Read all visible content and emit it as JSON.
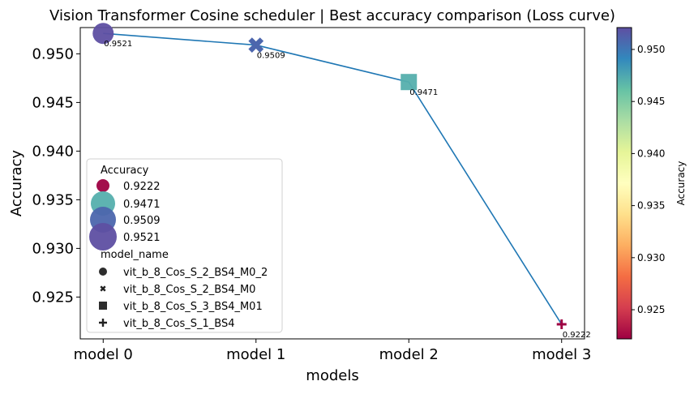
{
  "chart_data": {
    "type": "scatter",
    "title": "Vision Transformer Cosine scheduler | Best accuracy comparison (Loss curve)",
    "xlabel": "models",
    "ylabel": "Accuracy",
    "categories": [
      "model 0",
      "model 1",
      "model 2",
      "model 3"
    ],
    "values": [
      0.9521,
      0.9509,
      0.9471,
      0.9222
    ],
    "point_labels": [
      "0.9521",
      "0.9509",
      "0.9471",
      "0.9222"
    ],
    "model_names": [
      "vit_b_8_Cos_S_2_BS4_M0_2",
      "vit_b_8_Cos_S_2_BS4_M0",
      "vit_b_8_Cos_S_3_BS4_M01",
      "vit_b_8_Cos_S_1_BS4"
    ],
    "markers": [
      "circle",
      "x",
      "square",
      "plus"
    ],
    "ylim": [
      0.9207,
      0.9527
    ],
    "yticks": [
      0.925,
      0.93,
      0.935,
      0.94,
      0.945,
      0.95
    ],
    "ytick_labels": [
      "0.925",
      "0.930",
      "0.935",
      "0.940",
      "0.945",
      "0.950"
    ],
    "line_color": "#1f77b4",
    "colormap": "Spectral",
    "grid": false,
    "legend": {
      "placement": "lower-left",
      "size_title": "Accuracy",
      "size_entries": [
        "0.9222",
        "0.9471",
        "0.9509",
        "0.9521"
      ],
      "style_title": "model_name",
      "style_entries": [
        "vit_b_8_Cos_S_2_BS4_M0_2",
        "vit_b_8_Cos_S_2_BS4_M0",
        "vit_b_8_Cos_S_3_BS4_M01",
        "vit_b_8_Cos_S_1_BS4"
      ]
    },
    "colorbar": {
      "label": "Accuracy",
      "range": [
        0.9222,
        0.9521
      ],
      "ticks": [
        0.925,
        0.93,
        0.935,
        0.94,
        0.945,
        0.95
      ],
      "tick_labels": [
        "0.925",
        "0.930",
        "0.935",
        "0.940",
        "0.945",
        "0.950"
      ],
      "stops": [
        "#9e0142",
        "#d53e4f",
        "#f46d43",
        "#fdae61",
        "#fee08b",
        "#ffffbf",
        "#e6f598",
        "#abdda4",
        "#66c2a5",
        "#3288bd",
        "#5e4fa2"
      ]
    }
  }
}
